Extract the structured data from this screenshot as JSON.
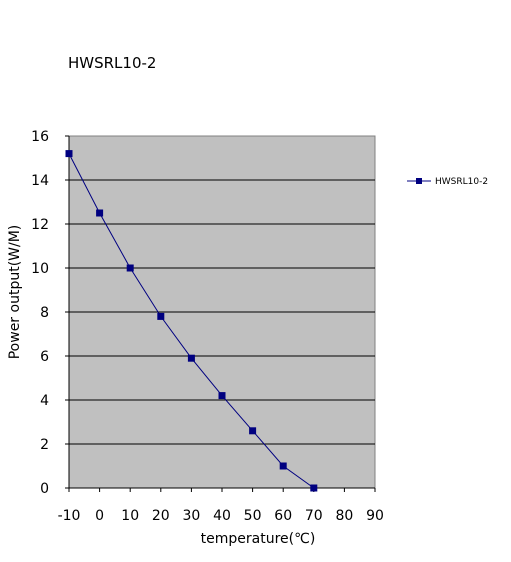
{
  "chart_data": {
    "type": "line",
    "title": "HWSRL10-2",
    "xlabel": "temperature(℃)",
    "ylabel": "Power output(W/M)",
    "xlim": [
      -10,
      90
    ],
    "ylim": [
      0,
      16
    ],
    "x_ticks": [
      "-10",
      "0",
      "10",
      "20",
      "30",
      "40",
      "50",
      "60",
      "70",
      "80",
      "90"
    ],
    "y_ticks": [
      "0",
      "2",
      "4",
      "6",
      "8",
      "10",
      "12",
      "14",
      "16"
    ],
    "grid": true,
    "legend_position": "right",
    "plot_background": "#c0c0c0",
    "series": [
      {
        "name": "HWSRL10-2",
        "color": "#000080",
        "x": [
          -10,
          0,
          10,
          20,
          30,
          40,
          50,
          60,
          70
        ],
        "y": [
          15.2,
          12.5,
          10.0,
          7.8,
          5.9,
          4.2,
          2.6,
          1.0,
          0.0
        ]
      }
    ]
  }
}
